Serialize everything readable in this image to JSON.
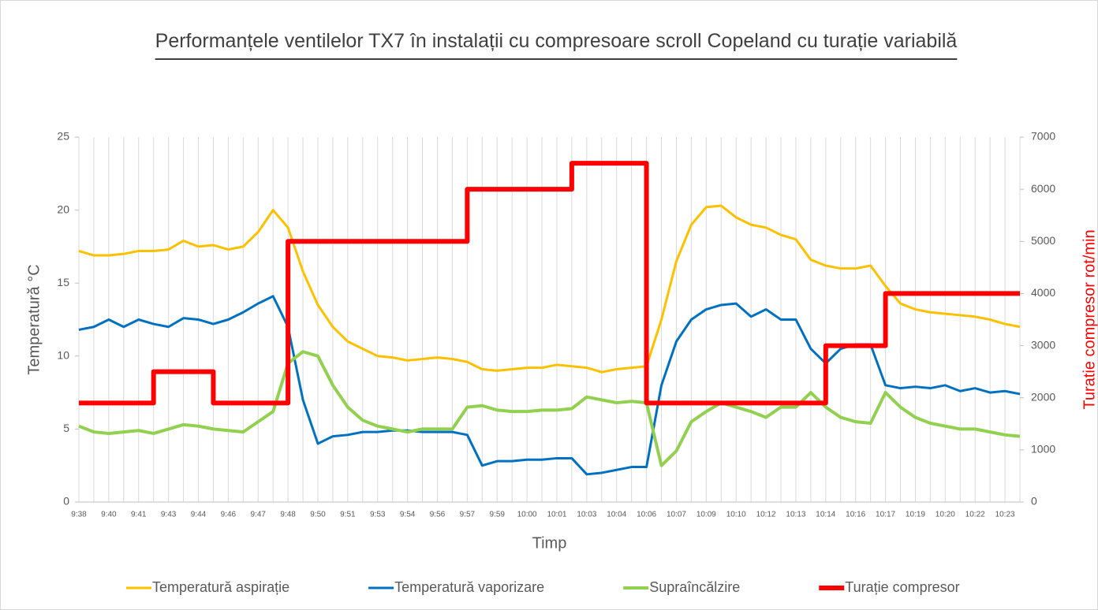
{
  "chart_data": {
    "type": "line",
    "title": "Performanțele ventilelor TX7 în instalații  cu compresoare scroll Copeland cu turație variabilă",
    "xlabel": "Timp",
    "ylabel": "Temperatură °C",
    "y2label": "Turatie compresor rot/min",
    "grid": "x",
    "legend": "bottom",
    "categories": [
      "9:38",
      null,
      "9:40",
      null,
      "9:41",
      null,
      "9:43",
      null,
      "9:44",
      null,
      "9:46",
      null,
      "9:47",
      null,
      "9:48",
      null,
      "9:50",
      null,
      "9:51",
      null,
      "9:53",
      null,
      "9:54",
      null,
      "9:56",
      null,
      "9:57",
      null,
      "9:59",
      null,
      "10:00",
      null,
      "10:01",
      null,
      "10:03",
      null,
      "10:04",
      null,
      "10:06",
      null,
      "10:07",
      null,
      "10:09",
      null,
      "10:10",
      null,
      "10:12",
      null,
      "10:13",
      null,
      "10:14",
      null,
      "10:16",
      null,
      "10:17",
      null,
      "10:19",
      null,
      "10:20",
      null,
      "10:22",
      null,
      "10:23",
      null
    ],
    "ylim": [
      0,
      25
    ],
    "yticks": [
      0,
      5,
      10,
      15,
      20,
      25
    ],
    "y2lim": [
      0,
      7000
    ],
    "y2ticks": [
      0,
      1000,
      2000,
      3000,
      4000,
      5000,
      6000,
      7000
    ],
    "series": [
      {
        "name": "Temperatură aspirație",
        "color": "#ffc000",
        "values": [
          17.2,
          16.9,
          16.9,
          17.0,
          17.2,
          17.2,
          17.3,
          17.9,
          17.5,
          17.6,
          17.3,
          17.5,
          18.5,
          20.0,
          18.8,
          15.8,
          13.5,
          12.0,
          11.0,
          10.5,
          10.0,
          9.9,
          9.7,
          9.8,
          9.9,
          9.8,
          9.6,
          9.1,
          9.0,
          9.1,
          9.2,
          9.2,
          9.4,
          9.3,
          9.2,
          8.9,
          9.1,
          9.2,
          9.3,
          12.5,
          16.5,
          19.0,
          20.2,
          20.3,
          19.5,
          19.0,
          18.8,
          18.3,
          18.0,
          16.6,
          16.2,
          16.0,
          16.0,
          16.2,
          14.8,
          13.6,
          13.2,
          13.0,
          12.9,
          12.8,
          12.7,
          12.5,
          12.2,
          12.0
        ]
      },
      {
        "name": "Temperatură vaporizare",
        "color": "#0070c0",
        "values": [
          11.8,
          12.0,
          12.5,
          12.0,
          12.5,
          12.2,
          12.0,
          12.6,
          12.5,
          12.2,
          12.5,
          13.0,
          13.6,
          14.1,
          12.0,
          7.0,
          4.0,
          4.5,
          4.6,
          4.8,
          4.8,
          4.9,
          4.9,
          4.8,
          4.8,
          4.8,
          4.6,
          2.5,
          2.8,
          2.8,
          2.9,
          2.9,
          3.0,
          3.0,
          1.9,
          2.0,
          2.2,
          2.4,
          2.4,
          8.0,
          11.0,
          12.5,
          13.2,
          13.5,
          13.6,
          12.7,
          13.2,
          12.5,
          12.5,
          10.5,
          9.5,
          10.5,
          10.8,
          10.8,
          8.0,
          7.8,
          7.9,
          7.8,
          8.0,
          7.6,
          7.8,
          7.5,
          7.6,
          7.4
        ]
      },
      {
        "name": "Supraîncălzire",
        "color": "#92d050",
        "values": [
          5.2,
          4.8,
          4.7,
          4.8,
          4.9,
          4.7,
          5.0,
          5.3,
          5.2,
          5.0,
          4.9,
          4.8,
          5.5,
          6.2,
          9.5,
          10.3,
          10.0,
          8.0,
          6.5,
          5.6,
          5.2,
          5.0,
          4.8,
          5.0,
          5.0,
          5.0,
          6.5,
          6.6,
          6.3,
          6.2,
          6.2,
          6.3,
          6.3,
          6.4,
          7.2,
          7.0,
          6.8,
          6.9,
          6.8,
          2.5,
          3.5,
          5.5,
          6.2,
          6.8,
          6.5,
          6.2,
          5.8,
          6.5,
          6.5,
          7.5,
          6.5,
          5.8,
          5.5,
          5.4,
          7.5,
          6.5,
          5.8,
          5.4,
          5.2,
          5.0,
          5.0,
          4.8,
          4.6,
          4.5
        ]
      },
      {
        "name": "Turație compresor",
        "color": "#ff0000",
        "axis": "y2",
        "step": "after",
        "values": [
          1900,
          1900,
          1900,
          1900,
          1900,
          2500,
          2500,
          2500,
          2500,
          1900,
          1900,
          1900,
          1900,
          1900,
          5000,
          5000,
          5000,
          5000,
          5000,
          5000,
          5000,
          5000,
          5000,
          5000,
          5000,
          5000,
          6000,
          6000,
          6000,
          6000,
          6000,
          6000,
          6000,
          6500,
          6500,
          6500,
          6500,
          6500,
          1900,
          1900,
          1900,
          1900,
          1900,
          1900,
          1900,
          1900,
          1900,
          1900,
          1900,
          1900,
          3000,
          3000,
          3000,
          3000,
          4000,
          4000,
          4000,
          4000,
          4000,
          4000,
          4000,
          4000,
          4000,
          4000
        ]
      }
    ]
  }
}
